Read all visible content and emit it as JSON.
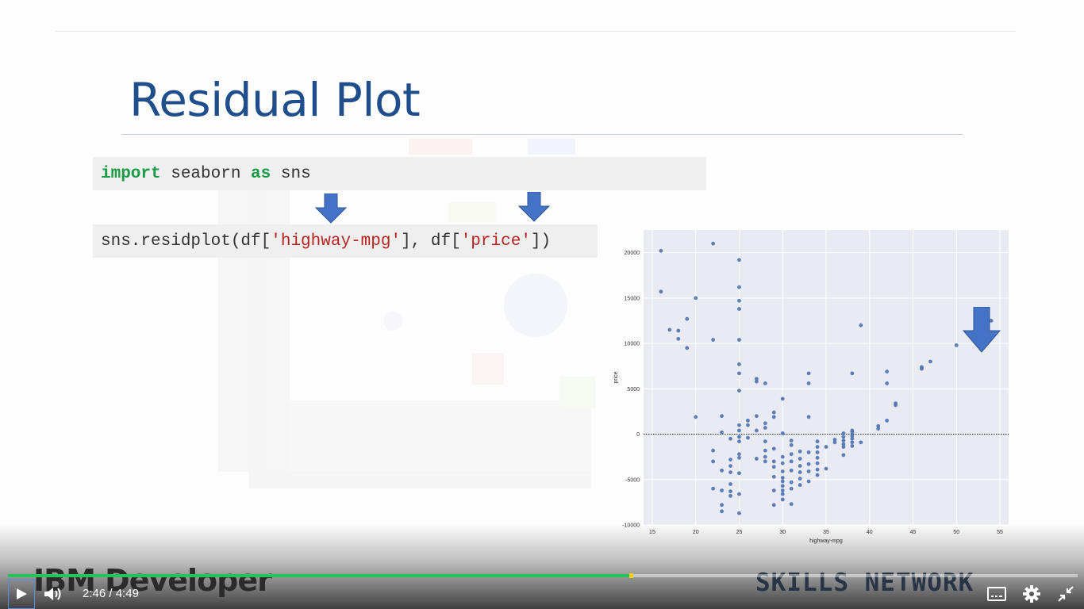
{
  "slide": {
    "title": "Residual Plot",
    "code_line1": {
      "kw1": "import",
      "mid": " seaborn ",
      "kw2": "as",
      "end": " sns"
    },
    "code_line2": {
      "a": "sns.residplot(df[",
      "s1": "'highway-mpg'",
      "b": "], df[",
      "s2": "'price'",
      "c": "])"
    }
  },
  "brand": {
    "left": "IBM Developer",
    "right": "SKILLS NETWORK"
  },
  "player": {
    "current_time": "2:46",
    "separator": "/",
    "duration": "4:49",
    "progress_fraction": 0.581,
    "buttons": [
      "play-icon",
      "volume-icon",
      "captions-icon",
      "gear-icon",
      "exit-fullscreen-icon"
    ]
  },
  "colors": {
    "title": "#1f4e8c",
    "arrow": "#4472c4",
    "keyword": "#1b9a46",
    "string": "#b8221f",
    "progress": "#27c35a",
    "points": "#4c72b0",
    "plot_bg": "#eaeaf2"
  },
  "chart_data": {
    "type": "scatter",
    "title": "",
    "xlabel": "highway-mpg",
    "ylabel": "price",
    "xlim": [
      14,
      56
    ],
    "ylim": [
      -10000,
      22500
    ],
    "xticks": [
      15,
      20,
      25,
      30,
      35,
      40,
      45,
      50,
      55
    ],
    "yticks": [
      -10000,
      -5000,
      0,
      5000,
      10000,
      15000,
      20000
    ],
    "grid": true,
    "zero_line": "dotted",
    "x": [
      16,
      16,
      17,
      18,
      18,
      19,
      19,
      20,
      20,
      22,
      22,
      22,
      22,
      22,
      23,
      23,
      23,
      23,
      23,
      23,
      24,
      24,
      24,
      24,
      24,
      24,
      24,
      25,
      25,
      25,
      25,
      25,
      25,
      25,
      25,
      25,
      25,
      25,
      25,
      25,
      25,
      25,
      25,
      25,
      26,
      26,
      26,
      27,
      27,
      27,
      27,
      27,
      28,
      28,
      28,
      28,
      28,
      28,
      28,
      29,
      29,
      29,
      29,
      29,
      29,
      29,
      29,
      30,
      30,
      30,
      30,
      30,
      30,
      30,
      30,
      30,
      30,
      30,
      31,
      31,
      31,
      31,
      31,
      31,
      31,
      31,
      32,
      32,
      32,
      32,
      32,
      32,
      33,
      33,
      33,
      33,
      33,
      33,
      33,
      34,
      34,
      34,
      34,
      34,
      34,
      34,
      35,
      35,
      36,
      36,
      37,
      37,
      37,
      37,
      37,
      37,
      38,
      38,
      38,
      38,
      38,
      38,
      38,
      39,
      39,
      41,
      41,
      42,
      42,
      42,
      43,
      43,
      46,
      46,
      47,
      50,
      54
    ],
    "y": [
      20200,
      15700,
      11500,
      11400,
      10500,
      12700,
      9500,
      15000,
      1900,
      21000,
      10400,
      -1800,
      -3000,
      -6000,
      2000,
      200,
      -4000,
      -7800,
      -8500,
      -6200,
      -500,
      -2800,
      -3500,
      -5500,
      -6300,
      -6800,
      -4200,
      19200,
      16200,
      14700,
      13800,
      10400,
      7700,
      6700,
      4800,
      1000,
      400,
      -300,
      -800,
      -2200,
      -2600,
      -4300,
      -6600,
      -8700,
      1500,
      1000,
      -400,
      6100,
      5800,
      2000,
      400,
      -2700,
      5600,
      1200,
      700,
      -800,
      -1800,
      -2500,
      -3000,
      2400,
      1900,
      -1600,
      -3000,
      -3600,
      -4700,
      -6200,
      -7800,
      3900,
      100,
      -2500,
      -3200,
      -4100,
      -4800,
      -5200,
      -5700,
      -6200,
      -6600,
      -7200,
      -700,
      -1200,
      -2200,
      -3000,
      -4000,
      -5300,
      -6000,
      -7700,
      -1900,
      -2700,
      -3500,
      -4200,
      -4900,
      -5600,
      6700,
      5600,
      1900,
      -2000,
      -3300,
      -4100,
      -5200,
      -800,
      -1400,
      -2000,
      -2600,
      -3200,
      -3900,
      -4500,
      -1400,
      -3800,
      -600,
      -900,
      100,
      -300,
      -700,
      -1100,
      -1400,
      -2300,
      6700,
      400,
      200,
      -200,
      -500,
      -900,
      -1300,
      12000,
      -900,
      900,
      600,
      6900,
      5600,
      1500,
      3400,
      3200,
      7400,
      7200,
      8000,
      9800,
      12500
    ]
  }
}
